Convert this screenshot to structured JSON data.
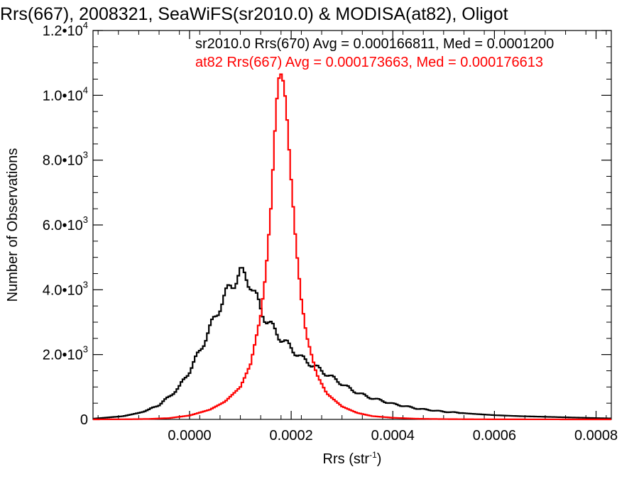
{
  "chart_data": {
    "type": "line",
    "title": "Rrs(667), 2008321, SeaWiFS(sr2010.0) & MODISA(at82), Oligot",
    "xlabel": "Rrs (str",
    "xlabel_sup": "-1",
    "xlabel_close": ")",
    "ylabel": "Number of Observations",
    "xlim": [
      -0.00019,
      0.00083
    ],
    "ylim": [
      0,
      12000
    ],
    "x_ticks": [
      {
        "value": 0.0,
        "label": "0.0000"
      },
      {
        "value": 0.0002,
        "label": "0.0002"
      },
      {
        "value": 0.0004,
        "label": "0.0004"
      },
      {
        "value": 0.0006,
        "label": "0.0006"
      },
      {
        "value": 0.0008,
        "label": "0.0008"
      }
    ],
    "y_ticks": [
      {
        "value": 0,
        "mant": "0",
        "exp": ""
      },
      {
        "value": 2000,
        "mant": "2.0•10",
        "exp": "3"
      },
      {
        "value": 4000,
        "mant": "4.0•10",
        "exp": "3"
      },
      {
        "value": 6000,
        "mant": "6.0•10",
        "exp": "3"
      },
      {
        "value": 8000,
        "mant": "8.0•10",
        "exp": "3"
      },
      {
        "value": 10000,
        "mant": "1.0•10",
        "exp": "4"
      },
      {
        "value": 12000,
        "mant": "1.2•10",
        "exp": "4"
      }
    ],
    "grid": false,
    "legend_position": "top-right",
    "legend": [
      {
        "text": "sr2010.0 Rrs(670) Avg = 0.000166811, Med = 0.0001200",
        "color": "#000000"
      },
      {
        "text": "at82 Rrs(667) Avg = 0.000173663, Med = 0.000176613",
        "color": "#ff0000"
      }
    ],
    "series": [
      {
        "color": "#000000",
        "x": [
          -0.00019,
          -0.00016,
          -0.00013,
          -0.0001,
          -8e-05,
          -6e-05,
          -4e-05,
          -2e-05,
          0.0,
          2e-05,
          4e-05,
          6e-05,
          8e-05,
          0.0001,
          0.00011,
          0.00012,
          0.00013,
          0.00014,
          0.00015,
          0.00016,
          0.00018,
          0.0002,
          0.00022,
          0.00025,
          0.00028,
          0.0003,
          0.00032,
          0.00035,
          0.0004,
          0.00045,
          0.0005,
          0.00055,
          0.0006,
          0.00065,
          0.0007,
          0.00075,
          0.0008,
          0.00083
        ],
        "y": [
          20,
          60,
          100,
          200,
          300,
          450,
          700,
          1000,
          1500,
          2100,
          2800,
          3500,
          4100,
          4500,
          4400,
          4200,
          3800,
          3400,
          3100,
          2900,
          2500,
          2200,
          1900,
          1600,
          1300,
          1100,
          900,
          700,
          480,
          330,
          240,
          180,
          130,
          100,
          80,
          60,
          40,
          30
        ]
      },
      {
        "color": "#ff0000",
        "x": [
          -0.00019,
          -0.00012,
          -8e-05,
          -4e-05,
          0.0,
          4e-05,
          7e-05,
          0.0001,
          0.00012,
          0.00014,
          0.00015,
          0.00016,
          0.00017,
          0.000175,
          0.00018,
          0.000185,
          0.00019,
          0.0002,
          0.00021,
          0.00022,
          0.00023,
          0.00025,
          0.00027,
          0.0003,
          0.00033,
          0.00036,
          0.0004,
          0.00045,
          0.0005,
          0.00055,
          0.0006,
          0.00065,
          0.0007,
          0.00083
        ],
        "y": [
          0,
          5,
          15,
          40,
          120,
          300,
          550,
          1000,
          1700,
          3200,
          4500,
          6500,
          9500,
          10500,
          10650,
          10400,
          9700,
          7400,
          5300,
          3700,
          2600,
          1400,
          800,
          400,
          200,
          100,
          50,
          20,
          10,
          5,
          3,
          2,
          1,
          0
        ]
      }
    ]
  }
}
